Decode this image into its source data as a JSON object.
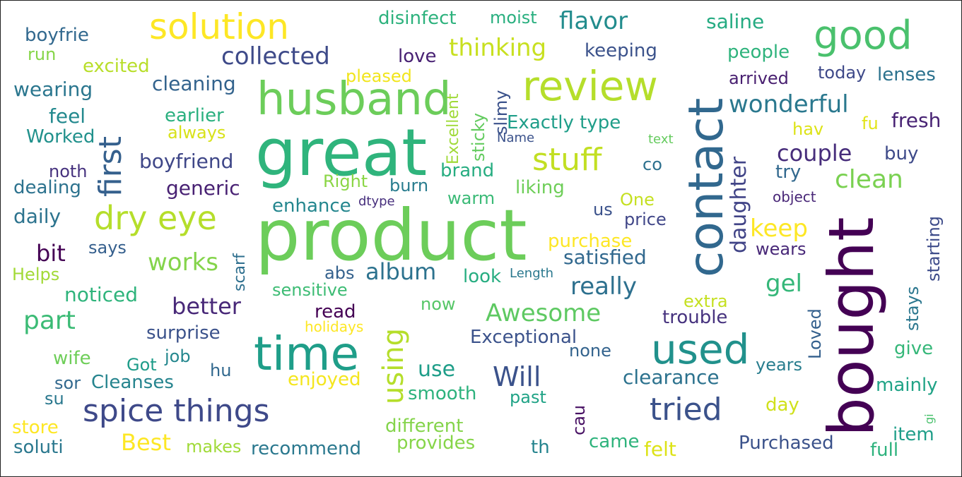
{
  "words": [
    {
      "text": "product",
      "color": "#6ccd5a"
    },
    {
      "text": "great",
      "color": "#2fb47c"
    },
    {
      "text": "bought",
      "color": "#440154"
    },
    {
      "text": "contact",
      "color": "#31688e"
    },
    {
      "text": "husband",
      "color": "#6ccd5a"
    },
    {
      "text": "time",
      "color": "#1f9e89"
    },
    {
      "text": "review",
      "color": "#b5de2b"
    },
    {
      "text": "used",
      "color": "#21918c"
    },
    {
      "text": "solution",
      "color": "#fde725"
    },
    {
      "text": "good",
      "color": "#4ac16d"
    },
    {
      "text": "spice things",
      "color": "#3e4989"
    },
    {
      "text": "dry eye",
      "color": "#b5de2b"
    },
    {
      "text": "first",
      "color": "#35608d"
    },
    {
      "text": "tried",
      "color": "#3b528b"
    },
    {
      "text": "stuff",
      "color": "#c2df23"
    },
    {
      "text": "using",
      "color": "#b5de2b"
    },
    {
      "text": "collected",
      "color": "#3e4a89"
    },
    {
      "text": "wonderful",
      "color": "#2a788e"
    },
    {
      "text": "daughter",
      "color": "#414487"
    },
    {
      "text": "couple",
      "color": "#472d7b"
    },
    {
      "text": "clean",
      "color": "#7ad151"
    },
    {
      "text": "Awesome",
      "color": "#5ec962"
    },
    {
      "text": "flavor",
      "color": "#228c8d"
    },
    {
      "text": "thinking",
      "color": "#c8e020"
    },
    {
      "text": "works",
      "color": "#84d44b"
    },
    {
      "text": "better",
      "color": "#482878"
    },
    {
      "text": "Will",
      "color": "#3b528b"
    },
    {
      "text": "really",
      "color": "#2d708e"
    },
    {
      "text": "album",
      "color": "#2c728e"
    },
    {
      "text": "part",
      "color": "#3bbb75"
    },
    {
      "text": "keep",
      "color": "#fde725"
    },
    {
      "text": "gel",
      "color": "#35b779"
    },
    {
      "text": "bit",
      "color": "#440154"
    },
    {
      "text": "Best",
      "color": "#fde725"
    },
    {
      "text": "saline",
      "color": "#25ab82"
    },
    {
      "text": "disinfect",
      "color": "#2db27d"
    },
    {
      "text": "moist",
      "color": "#29af7f"
    },
    {
      "text": "boyfrie",
      "color": "#31688e"
    },
    {
      "text": "run",
      "color": "#86d549"
    },
    {
      "text": "excited",
      "color": "#b8de29"
    },
    {
      "text": "wearing",
      "color": "#2a768e"
    },
    {
      "text": "feel",
      "color": "#23898e"
    },
    {
      "text": "Worked",
      "color": "#21918c"
    },
    {
      "text": "noth",
      "color": "#46327e"
    },
    {
      "text": "dealing",
      "color": "#2c728e"
    },
    {
      "text": "daily",
      "color": "#2c738e"
    },
    {
      "text": "says",
      "color": "#355f8d"
    },
    {
      "text": "Helps",
      "color": "#a2da37"
    },
    {
      "text": "noticed",
      "color": "#2fb47c"
    },
    {
      "text": "cleaning",
      "color": "#33638d"
    },
    {
      "text": "earlier",
      "color": "#2ab07f"
    },
    {
      "text": "always",
      "color": "#d8e219"
    },
    {
      "text": "boyfriend",
      "color": "#3f4788"
    },
    {
      "text": "generic",
      "color": "#482173"
    },
    {
      "text": "pleased",
      "color": "#f1e51d"
    },
    {
      "text": "love",
      "color": "#482173"
    },
    {
      "text": "keeping",
      "color": "#3b528b"
    },
    {
      "text": "people",
      "color": "#2eb37c"
    },
    {
      "text": "arrived",
      "color": "#481f70"
    },
    {
      "text": "today",
      "color": "#3e4989"
    },
    {
      "text": "lenses",
      "color": "#2c728e"
    },
    {
      "text": "fresh",
      "color": "#482374"
    },
    {
      "text": "fu",
      "color": "#e2e418"
    },
    {
      "text": "hav",
      "color": "#dde318"
    },
    {
      "text": "buy",
      "color": "#3e4a89"
    },
    {
      "text": "try",
      "color": "#31688e"
    },
    {
      "text": "text",
      "color": "#65cb5e"
    },
    {
      "text": "Exactly type",
      "color": "#1f9e89"
    },
    {
      "text": "Name",
      "color": "#3b528b"
    },
    {
      "text": "Excellent",
      "color": "#a0da39"
    },
    {
      "text": "sticky",
      "color": "#63cb5f"
    },
    {
      "text": "slimy",
      "color": "#3b528b"
    },
    {
      "text": "brand",
      "color": "#27ad81"
    },
    {
      "text": "co",
      "color": "#2d708e"
    },
    {
      "text": "Right",
      "color": "#8bd646"
    },
    {
      "text": "burn",
      "color": "#287c8e"
    },
    {
      "text": "liking",
      "color": "#6ece58"
    },
    {
      "text": "warm",
      "color": "#3aba76"
    },
    {
      "text": "enhance",
      "color": "#24868e"
    },
    {
      "text": "dtype",
      "color": "#472f7d"
    },
    {
      "text": "One",
      "color": "#c5e021"
    },
    {
      "text": "price",
      "color": "#404688"
    },
    {
      "text": "object",
      "color": "#482677"
    },
    {
      "text": "us",
      "color": "#3b528b"
    },
    {
      "text": "purchase",
      "color": "#fde725"
    },
    {
      "text": "satisfied",
      "color": "#31688e"
    },
    {
      "text": "wears",
      "color": "#482878"
    },
    {
      "text": "starting",
      "color": "#3e4c8a"
    },
    {
      "text": "abs",
      "color": "#34618d"
    },
    {
      "text": "look",
      "color": "#27ad81"
    },
    {
      "text": "Length",
      "color": "#2a788e"
    },
    {
      "text": "scarf",
      "color": "#2e6f8e"
    },
    {
      "text": "sensitive",
      "color": "#3dbc74"
    },
    {
      "text": "extra",
      "color": "#c5e021"
    },
    {
      "text": "stays",
      "color": "#2a768e"
    },
    {
      "text": "read",
      "color": "#440154"
    },
    {
      "text": "now",
      "color": "#56c667"
    },
    {
      "text": "holidays",
      "color": "#fde725"
    },
    {
      "text": "trouble",
      "color": "#46327e"
    },
    {
      "text": "Loved",
      "color": "#34608d"
    },
    {
      "text": "surprise",
      "color": "#3b528b"
    },
    {
      "text": "Exceptional",
      "color": "#3b528b"
    },
    {
      "text": "none",
      "color": "#33638d"
    },
    {
      "text": "give",
      "color": "#35b779"
    },
    {
      "text": "wife",
      "color": "#6ece58"
    },
    {
      "text": "Got",
      "color": "#1e9c89"
    },
    {
      "text": "job",
      "color": "#24878e"
    },
    {
      "text": "hu",
      "color": "#31688e"
    },
    {
      "text": "use",
      "color": "#1f9e89"
    },
    {
      "text": "clearance",
      "color": "#2c728e"
    },
    {
      "text": "years",
      "color": "#287d8e"
    },
    {
      "text": "sor",
      "color": "#31688e"
    },
    {
      "text": "Cleanses",
      "color": "#25848e"
    },
    {
      "text": "enjoyed",
      "color": "#f4e61e"
    },
    {
      "text": "su",
      "color": "#2a788e"
    },
    {
      "text": "smooth",
      "color": "#2db27d"
    },
    {
      "text": "past",
      "color": "#20a386"
    },
    {
      "text": "mainly",
      "color": "#20a386"
    },
    {
      "text": "cau",
      "color": "#471063"
    },
    {
      "text": "day",
      "color": "#d0e11c"
    },
    {
      "text": "store",
      "color": "#fde725"
    },
    {
      "text": "different",
      "color": "#84d44b"
    },
    {
      "text": "item",
      "color": "#1f9e89"
    },
    {
      "text": "gi",
      "color": "#4ac16d"
    },
    {
      "text": "soluti",
      "color": "#2a788e"
    },
    {
      "text": "makes",
      "color": "#a0da39"
    },
    {
      "text": "recommend",
      "color": "#2a788e"
    },
    {
      "text": "provides",
      "color": "#86d549"
    },
    {
      "text": "th",
      "color": "#25848e"
    },
    {
      "text": "came",
      "color": "#2eb37c"
    },
    {
      "text": "felt",
      "color": "#dde318"
    },
    {
      "text": "Purchased",
      "color": "#3b528b"
    },
    {
      "text": "full",
      "color": "#2db27d"
    }
  ]
}
